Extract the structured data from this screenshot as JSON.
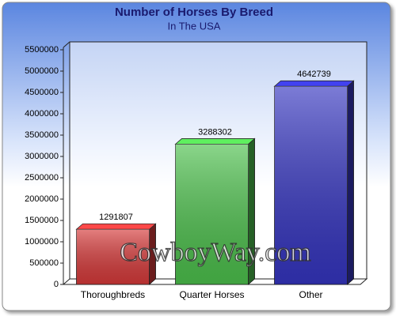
{
  "chart_data": {
    "type": "bar3d",
    "title": "Number of Horses By Breed",
    "subtitle": "In The USA",
    "categories": [
      "Thoroughbreds",
      "Quarter Horses",
      "Other"
    ],
    "values": [
      1291807,
      3288302,
      4642739
    ],
    "colors": [
      "#d63a3a",
      "#4cc04c",
      "#3535c0"
    ],
    "ylim": [
      0,
      5500000
    ],
    "yticks": [
      0,
      500000,
      1000000,
      1500000,
      2000000,
      2500000,
      3000000,
      3500000,
      4000000,
      4500000,
      5000000,
      5500000
    ],
    "watermark": "CowboyWay.com"
  }
}
